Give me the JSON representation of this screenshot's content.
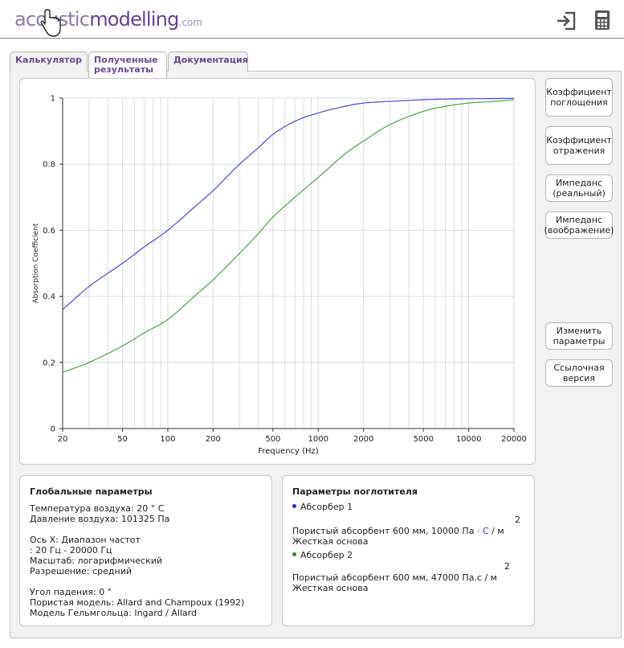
{
  "header": {
    "logo": {
      "part1": "acoustic",
      "part2": "modelling",
      "part3": ".com"
    },
    "icons": [
      "sign-in-icon",
      "calculator-icon"
    ]
  },
  "tabs": [
    {
      "label": "Калькулятор",
      "active": false
    },
    {
      "label_line1": "Полученные",
      "label_line2": "результаты",
      "active": true
    },
    {
      "label": "Документация",
      "active": false
    }
  ],
  "side_buttons": {
    "absorption": {
      "line1": "Коэффициент",
      "line2": "поглощения"
    },
    "reflection": {
      "line1": "Коэффициент",
      "line2": "отражения"
    },
    "impedance_real": {
      "line1": "Импеданс",
      "line2": "(реальный)"
    },
    "impedance_imag": {
      "line1": "Импеданс",
      "line2": "(воображение)"
    },
    "change_params": {
      "line1": "Изменить",
      "line2": "параметры"
    },
    "reference": {
      "line1": "Ссылочная",
      "line2": "версия"
    }
  },
  "global_params": {
    "title": "Глобальные параметры",
    "lines": [
      "Температура воздуха: 20 ° C",
      "Давление воздуха: 101325 Па",
      "Ось X: Диапазон частот",
      ": 20 Гц - 20000 Гц",
      "Масштаб: логарифмический",
      "Разрешение: средний",
      "Угол падения: 0 °",
      "Пористая модель: Allard and Champoux (1992)",
      "Модель Гельмгольца: Ingard / Allard"
    ]
  },
  "absorber_params": {
    "title": "Параметры поглотителя",
    "absorber1": {
      "name": "Абсорбер 1",
      "desc_a": "Пористый абсорбент 600 мм, 10000 Па",
      "desc_dot": "·",
      "desc_c": "C",
      "desc_b": "/ м",
      "sup": "2",
      "backing": "Жесткая основа",
      "color": "#1a2fd0"
    },
    "absorber2": {
      "name": "Абсорбер 2",
      "desc": "Пористый абсорбент 600 мм, 47000 Па.с / м",
      "sup": "2",
      "backing": "Жесткая основа",
      "color": "#2e8b2e"
    }
  },
  "chart_data": {
    "type": "line",
    "xlabel": "Frequency (Hz)",
    "ylabel": "Absorption Coefficient",
    "xscale": "log",
    "xlim": [
      20,
      20000
    ],
    "ylim": [
      0,
      1
    ],
    "grid": true,
    "xticks": [
      20,
      50,
      100,
      200,
      500,
      1000,
      2000,
      5000,
      10000,
      20000
    ],
    "yticks": [
      0,
      0.2,
      0.4,
      0.6,
      0.8,
      1
    ],
    "series": [
      {
        "color": "#4a4ae6",
        "x": [
          20,
          30,
          40,
          50,
          70,
          100,
          150,
          200,
          300,
          400,
          500,
          700,
          1000,
          1500,
          2000,
          3000,
          5000,
          7000,
          10000,
          20000
        ],
        "y": [
          0.36,
          0.43,
          0.47,
          0.5,
          0.55,
          0.6,
          0.67,
          0.72,
          0.8,
          0.85,
          0.89,
          0.93,
          0.955,
          0.975,
          0.985,
          0.99,
          0.995,
          0.997,
          0.998,
          0.999
        ]
      },
      {
        "color": "#4aa64a",
        "x": [
          20,
          30,
          50,
          70,
          100,
          150,
          200,
          300,
          400,
          500,
          700,
          1000,
          1500,
          2000,
          3000,
          5000,
          7000,
          10000,
          15000,
          20000
        ],
        "y": [
          0.17,
          0.2,
          0.25,
          0.29,
          0.33,
          0.4,
          0.45,
          0.53,
          0.59,
          0.64,
          0.7,
          0.76,
          0.83,
          0.87,
          0.92,
          0.96,
          0.975,
          0.985,
          0.99,
          0.995
        ]
      }
    ]
  }
}
